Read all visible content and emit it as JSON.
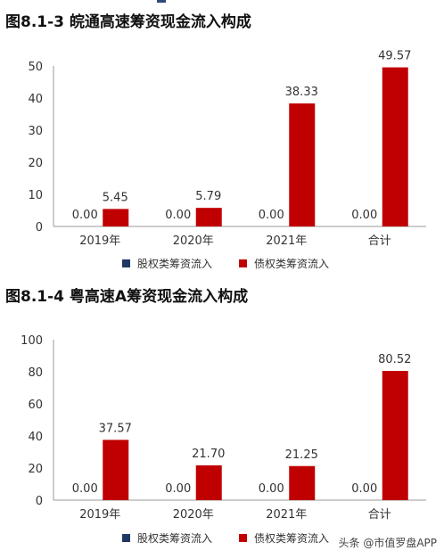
{
  "colors": {
    "equity": "#1f3864",
    "debt": "#c00000",
    "axis": "#999999"
  },
  "legend": {
    "equity_label": "股权类筹资流入",
    "debt_label": "债权类筹资流入"
  },
  "watermark": "头条 @市值罗盘APP",
  "chart_data": [
    {
      "type": "bar",
      "title": "图8.1-3 皖通高速筹资现金流入构成",
      "categories": [
        "2019年",
        "2020年",
        "2021年",
        "合计"
      ],
      "series": [
        {
          "name": "股权类筹资流入",
          "values": [
            0.0,
            0.0,
            0.0,
            0.0
          ]
        },
        {
          "name": "债权类筹资流入",
          "values": [
            5.45,
            5.79,
            38.33,
            49.57
          ]
        }
      ],
      "ylim": [
        0,
        50
      ],
      "yticks": [
        0,
        10,
        20,
        30,
        40,
        50
      ],
      "legend_position": "bottom",
      "grid": false
    },
    {
      "type": "bar",
      "title": "图8.1-4 粤高速A筹资现金流入构成",
      "categories": [
        "2019年",
        "2020年",
        "2021年",
        "合计"
      ],
      "series": [
        {
          "name": "股权类筹资流入",
          "values": [
            0.0,
            0.0,
            0.0,
            0.0
          ]
        },
        {
          "name": "债权类筹资流入",
          "values": [
            37.57,
            21.7,
            21.25,
            80.52
          ]
        }
      ],
      "ylim": [
        0,
        100
      ],
      "yticks": [
        0,
        20,
        40,
        60,
        80,
        100
      ],
      "legend_position": "bottom",
      "grid": false
    }
  ]
}
